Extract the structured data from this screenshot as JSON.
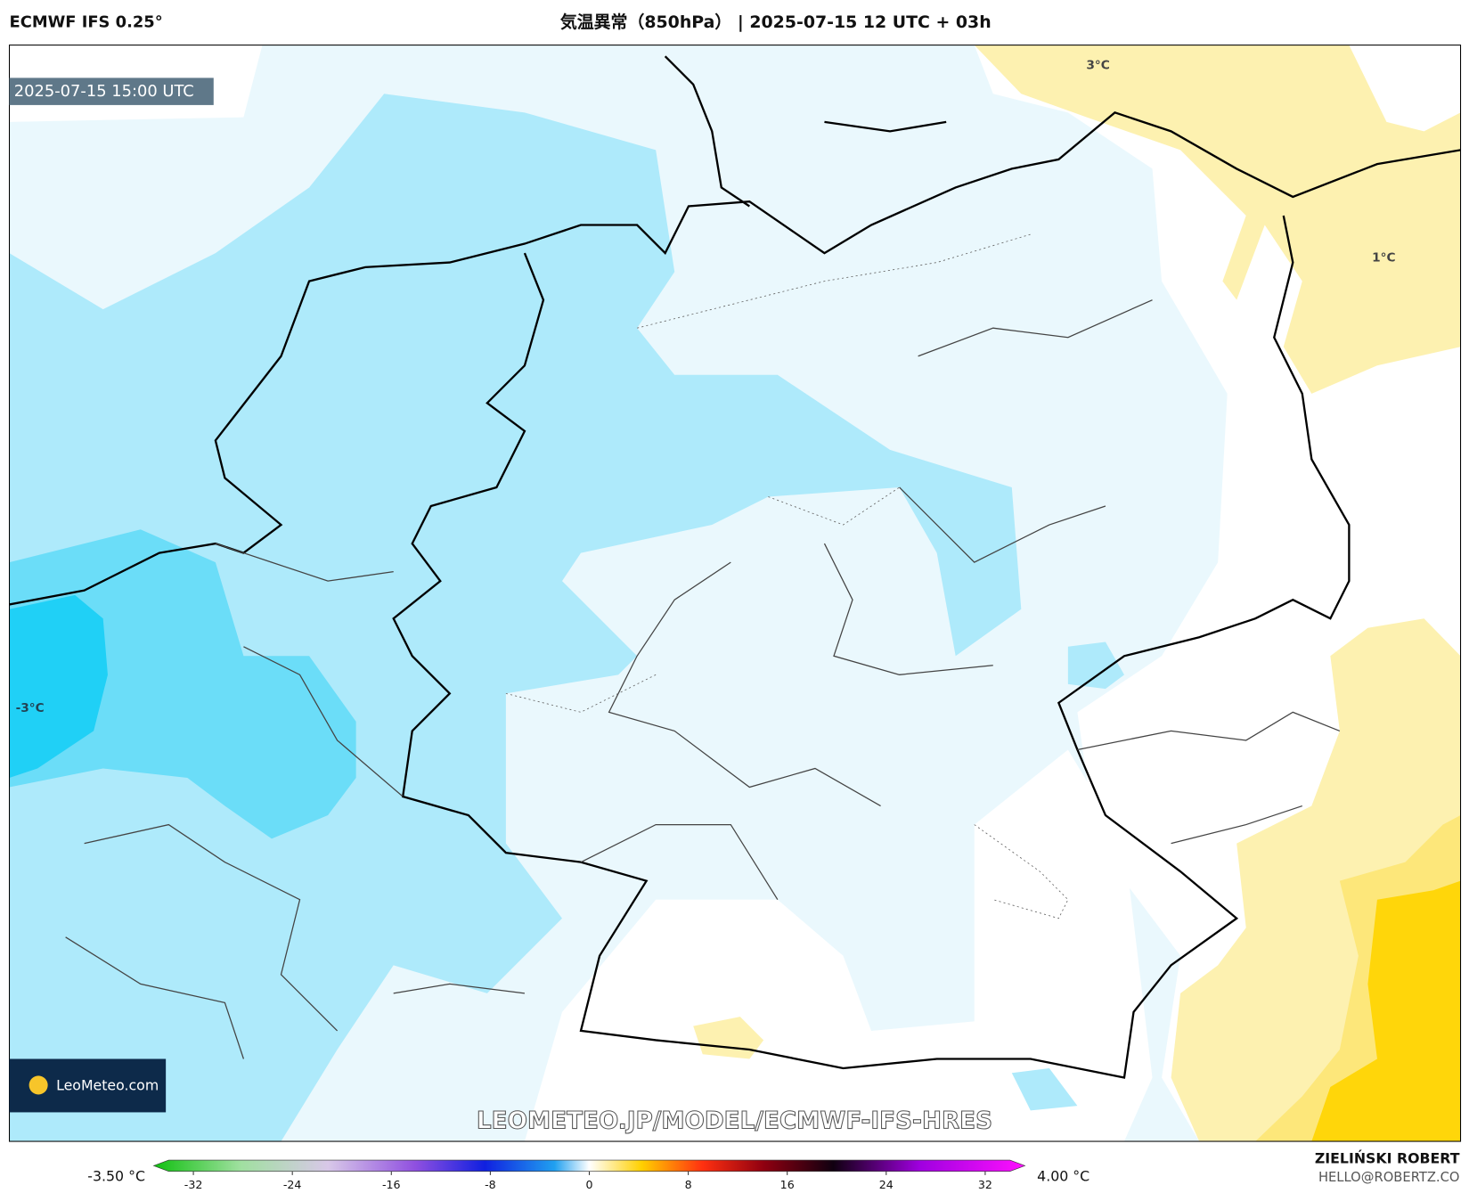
{
  "header": {
    "model": "ECMWF IFS 0.25°",
    "title": "気温異常（850hPa） | 2025-07-15 12 UTC + 03h"
  },
  "map": {
    "valid_time": "2025-07-15 15:00 UTC",
    "logo": "LeoMeteo.com",
    "watermark": "LEOMETEO.JP/MODEL/ECMWF-IFS-HRES",
    "contour_labels": [
      "3°C",
      "1°C",
      "-3°C"
    ]
  },
  "colorbar": {
    "min_label": "-3.50 °C",
    "max_label": "4.00 °C",
    "lim": [
      -34,
      34
    ],
    "ticks": [
      -32,
      -24,
      -16,
      -8,
      0,
      8,
      16,
      24,
      32
    ]
  },
  "footer": {
    "author": "ZIELIŃSKI ROBERT",
    "email": "HELLO@ROBERTZ.CO"
  }
}
